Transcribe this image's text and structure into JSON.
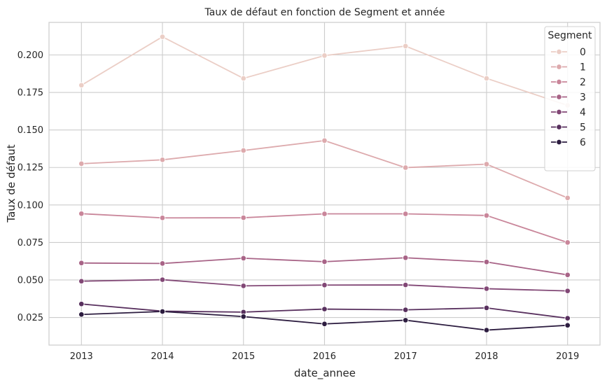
{
  "chart_data": {
    "type": "line",
    "title": "Taux de défaut en fonction de Segment et année",
    "xlabel": "date_annee",
    "ylabel": "Taux de défaut",
    "x": [
      2013,
      2014,
      2015,
      2016,
      2017,
      2018,
      2019
    ],
    "x_tick_labels": [
      "2013",
      "2014",
      "2015",
      "2016",
      "2017",
      "2018",
      "2019"
    ],
    "y_ticks": [
      0.025,
      0.05,
      0.075,
      0.1,
      0.125,
      0.15,
      0.175,
      0.2
    ],
    "y_tick_labels": [
      "0.025",
      "0.050",
      "0.075",
      "0.100",
      "0.125",
      "0.150",
      "0.175",
      "0.200"
    ],
    "ylim": [
      0.0066,
      0.2217
    ],
    "xlim": [
      2012.6,
      2019.4
    ],
    "grid": true,
    "legend": {
      "title": "Segment",
      "placement": "top-right"
    },
    "series": [
      {
        "name": "0",
        "color": "#ebcec6",
        "values": [
          0.1798,
          0.2121,
          0.1844,
          0.1996,
          0.2059,
          0.1844,
          0.1664
        ]
      },
      {
        "name": "1",
        "color": "#ddaaad",
        "values": [
          0.1275,
          0.1301,
          0.1363,
          0.1429,
          0.1249,
          0.1272,
          0.1047
        ]
      },
      {
        "name": "2",
        "color": "#c9869a",
        "values": [
          0.0942,
          0.0914,
          0.0915,
          0.0941,
          0.0941,
          0.093,
          0.075
        ]
      },
      {
        "name": "3",
        "color": "#a86487",
        "values": [
          0.0613,
          0.061,
          0.0645,
          0.0622,
          0.0648,
          0.062,
          0.0534
        ]
      },
      {
        "name": "4",
        "color": "#824876",
        "values": [
          0.0492,
          0.0502,
          0.0461,
          0.0466,
          0.0467,
          0.0442,
          0.0427
        ]
      },
      {
        "name": "5",
        "color": "#58305e",
        "values": [
          0.034,
          0.0292,
          0.0286,
          0.0306,
          0.0301,
          0.0314,
          0.0245
        ]
      },
      {
        "name": "6",
        "color": "#2d1d40",
        "values": [
          0.027,
          0.029,
          0.0256,
          0.0207,
          0.0232,
          0.0166,
          0.0198
        ]
      }
    ]
  }
}
